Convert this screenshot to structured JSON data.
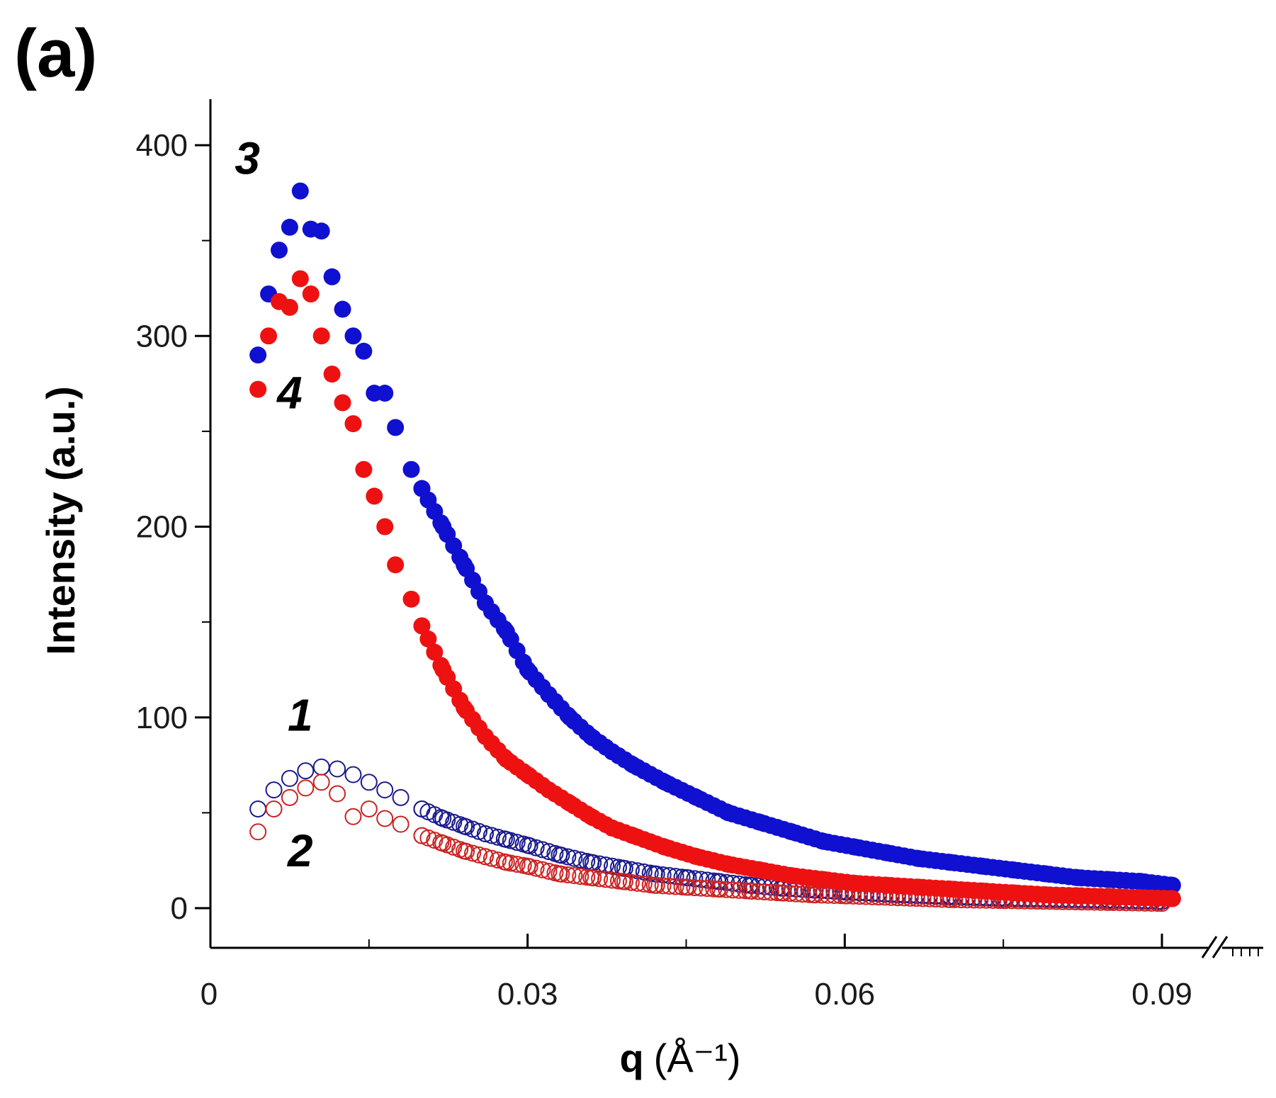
{
  "panel_label": "(a)",
  "chart_data": {
    "type": "scatter",
    "title": "",
    "xlabel_main": "q",
    "xlabel_unit": "(Å⁻¹)",
    "ylabel": "Intensity (a.u.)",
    "xlim": [
      0,
      0.093
    ],
    "ylim": [
      -20,
      420
    ],
    "x_ticks": [
      {
        "value": 0,
        "label": "0"
      },
      {
        "value": 0.03,
        "label": "0.03"
      },
      {
        "value": 0.06,
        "label": "0.06"
      },
      {
        "value": 0.09,
        "label": "0.09"
      }
    ],
    "y_ticks": [
      {
        "value": 0,
        "label": "0"
      },
      {
        "value": 100,
        "label": "100"
      },
      {
        "value": 200,
        "label": "200"
      },
      {
        "value": 300,
        "label": "300"
      },
      {
        "value": 400,
        "label": "400"
      }
    ],
    "axis_break": "x-axis break after 0.09",
    "series": [
      {
        "name": "1",
        "label": "1",
        "color": "#1a1a8c",
        "filled": false,
        "x": [
          0.0045,
          0.006,
          0.0075,
          0.009,
          0.0105,
          0.012,
          0.0135,
          0.015,
          0.0165,
          0.018,
          0.02,
          0.022,
          0.024,
          0.026,
          0.028,
          0.03,
          0.033,
          0.036,
          0.039,
          0.042,
          0.045,
          0.048,
          0.051,
          0.054,
          0.057,
          0.06,
          0.065,
          0.07,
          0.075,
          0.08,
          0.085,
          0.09
        ],
        "y": [
          52,
          62,
          68,
          72,
          74,
          73,
          70,
          66,
          62,
          58,
          52,
          47,
          43,
          39,
          36,
          33,
          28,
          24,
          21,
          18,
          16,
          14,
          12,
          10.5,
          9.5,
          8.5,
          7,
          6,
          5,
          4.5,
          4,
          3.5
        ]
      },
      {
        "name": "2",
        "label": "2",
        "color": "#cc2222",
        "filled": false,
        "x": [
          0.0045,
          0.006,
          0.0075,
          0.009,
          0.0105,
          0.012,
          0.0135,
          0.015,
          0.0165,
          0.018,
          0.02,
          0.022,
          0.024,
          0.026,
          0.028,
          0.03,
          0.033,
          0.036,
          0.039,
          0.042,
          0.045,
          0.048,
          0.051,
          0.054,
          0.057,
          0.06,
          0.065,
          0.07,
          0.075,
          0.08,
          0.085,
          0.09
        ],
        "y": [
          40,
          52,
          58,
          63,
          66,
          60,
          48,
          52,
          47,
          44,
          38,
          34,
          30,
          27,
          24,
          22,
          18,
          16,
          14,
          12,
          11,
          10,
          9,
          8,
          7,
          6.5,
          5.5,
          4.5,
          4,
          3.5,
          3,
          2.5
        ]
      },
      {
        "name": "3",
        "label": "3",
        "color": "#1010d0",
        "filled": true,
        "x": [
          0.0045,
          0.0055,
          0.0065,
          0.0075,
          0.0085,
          0.0095,
          0.0105,
          0.0115,
          0.0125,
          0.0135,
          0.0145,
          0.0155,
          0.0165,
          0.0175,
          0.019,
          0.02,
          0.022,
          0.024,
          0.026,
          0.028,
          0.03,
          0.032,
          0.034,
          0.036,
          0.038,
          0.04,
          0.043,
          0.046,
          0.049,
          0.052,
          0.055,
          0.058,
          0.061,
          0.064,
          0.067,
          0.07,
          0.073,
          0.076,
          0.079,
          0.082,
          0.085,
          0.088,
          0.091
        ],
        "y": [
          290,
          322,
          345,
          357,
          376,
          356,
          355,
          331,
          314,
          300,
          292,
          270,
          270,
          252,
          230,
          220,
          200,
          180,
          160,
          145,
          125,
          112,
          100,
          90,
          82,
          75,
          66,
          58,
          50,
          45,
          40,
          35,
          32,
          29,
          26,
          24,
          22,
          20,
          18,
          16,
          15,
          14,
          12
        ]
      },
      {
        "name": "4",
        "label": "4",
        "color": "#ee1111",
        "filled": true,
        "x": [
          0.0045,
          0.0055,
          0.0065,
          0.0075,
          0.0085,
          0.0095,
          0.0105,
          0.0115,
          0.0125,
          0.0135,
          0.0145,
          0.0155,
          0.0165,
          0.0175,
          0.019,
          0.02,
          0.022,
          0.024,
          0.026,
          0.028,
          0.03,
          0.032,
          0.034,
          0.036,
          0.038,
          0.04,
          0.043,
          0.046,
          0.049,
          0.052,
          0.055,
          0.058,
          0.061,
          0.064,
          0.067,
          0.07,
          0.073,
          0.076,
          0.079,
          0.082,
          0.085,
          0.088,
          0.091
        ],
        "y": [
          272,
          300,
          318,
          315,
          330,
          322,
          300,
          280,
          265,
          254,
          230,
          216,
          200,
          180,
          162,
          148,
          125,
          105,
          90,
          78,
          70,
          62,
          55,
          48,
          42,
          38,
          32,
          27,
          23,
          20,
          17,
          15,
          13,
          12,
          11,
          10,
          9,
          8,
          7,
          6.5,
          6,
          5.5,
          5
        ]
      }
    ],
    "series_labels": [
      {
        "text": "3",
        "q": 0.0035,
        "i": 385
      },
      {
        "text": "4",
        "q": 0.0075,
        "i": 262
      },
      {
        "text": "1",
        "q": 0.0085,
        "i": 93
      },
      {
        "text": "2",
        "q": 0.0085,
        "i": 22
      }
    ]
  }
}
